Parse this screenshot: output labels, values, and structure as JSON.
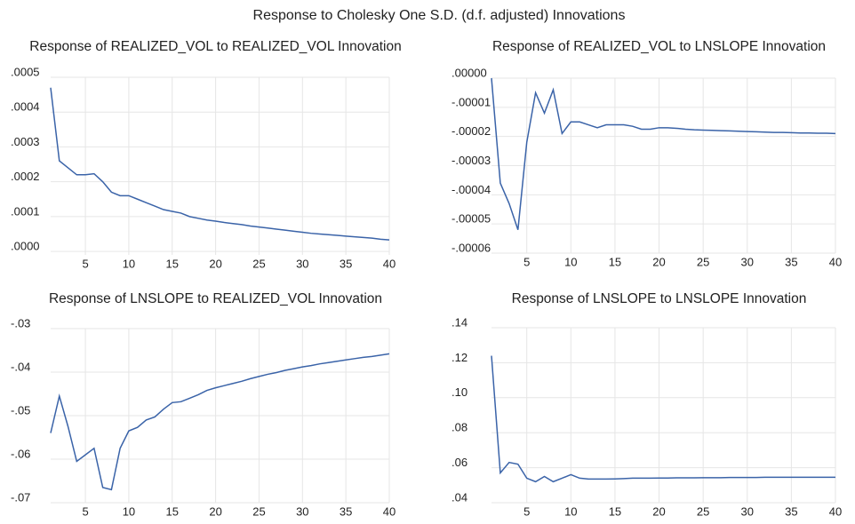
{
  "title": "Response to Cholesky One S.D. (d.f. adjusted) Innovations",
  "chart_data": [
    {
      "type": "line",
      "title": "Response of REALIZED_VOL to REALIZED_VOL Innovation",
      "color": "#3a63a8",
      "grid": true,
      "x": [
        1,
        2,
        3,
        4,
        5,
        6,
        7,
        8,
        9,
        10,
        11,
        12,
        13,
        14,
        15,
        16,
        17,
        18,
        19,
        20,
        21,
        22,
        23,
        24,
        25,
        26,
        27,
        28,
        29,
        30,
        31,
        32,
        33,
        34,
        35,
        36,
        37,
        38,
        39,
        40
      ],
      "values": [
        0.00047,
        0.00026,
        0.00024,
        0.00022,
        0.00022,
        0.000223,
        0.0002,
        0.00017,
        0.00016,
        0.00016,
        0.00015,
        0.00014,
        0.00013,
        0.00012,
        0.000115,
        0.00011,
        0.0001,
        9.5e-05,
        9e-05,
        8.7e-05,
        8.3e-05,
        8e-05,
        7.7e-05,
        7.3e-05,
        7e-05,
        6.7e-05,
        6.4e-05,
        6.1e-05,
        5.8e-05,
        5.5e-05,
        5.2e-05,
        5e-05,
        4.8e-05,
        4.6e-05,
        4.4e-05,
        4.2e-05,
        4e-05,
        3.8e-05,
        3.5e-05,
        3.3e-05
      ],
      "xlim": [
        1,
        40
      ],
      "xticks": [
        5,
        10,
        15,
        20,
        25,
        30,
        35,
        40
      ],
      "ylim": [
        -1e-05,
        0.0005
      ],
      "yticks": [
        {
          "value": 0,
          "label": ".0000"
        },
        {
          "value": 0.0001,
          "label": ".0001"
        },
        {
          "value": 0.0002,
          "label": ".0002"
        },
        {
          "value": 0.0003,
          "label": ".0003"
        },
        {
          "value": 0.0004,
          "label": ".0004"
        },
        {
          "value": 0.0005,
          "label": ".0005"
        }
      ]
    },
    {
      "type": "line",
      "title": "Response of REALIZED_VOL to LNSLOPE Innovation",
      "color": "#3a63a8",
      "grid": true,
      "x": [
        1,
        2,
        3,
        4,
        5,
        6,
        7,
        8,
        9,
        10,
        11,
        12,
        13,
        14,
        15,
        16,
        17,
        18,
        19,
        20,
        21,
        22,
        23,
        24,
        25,
        26,
        27,
        28,
        29,
        30,
        31,
        32,
        33,
        34,
        35,
        36,
        37,
        38,
        39,
        40
      ],
      "values": [
        0,
        -3.6e-05,
        -4.3e-05,
        -5.2e-05,
        -2.2e-05,
        -5e-06,
        -1.2e-05,
        -4e-06,
        -1.9e-05,
        -1.5e-05,
        -1.5e-05,
        -1.6e-05,
        -1.7e-05,
        -1.6e-05,
        -1.6e-05,
        -1.6e-05,
        -1.65e-05,
        -1.75e-05,
        -1.75e-05,
        -1.7e-05,
        -1.7e-05,
        -1.72e-05,
        -1.75e-05,
        -1.77e-05,
        -1.78e-05,
        -1.79e-05,
        -1.8e-05,
        -1.81e-05,
        -1.82e-05,
        -1.83e-05,
        -1.84e-05,
        -1.85e-05,
        -1.86e-05,
        -1.86e-05,
        -1.87e-05,
        -1.88e-05,
        -1.88e-05,
        -1.89e-05,
        -1.89e-05,
        -1.9e-05
      ],
      "xlim": [
        1,
        40
      ],
      "xticks": [
        5,
        10,
        15,
        20,
        25,
        30,
        35,
        40
      ],
      "ylim": [
        -6e-05,
        0
      ],
      "yticks": [
        {
          "value": -6e-05,
          "label": "-.00006"
        },
        {
          "value": -5e-05,
          "label": "-.00005"
        },
        {
          "value": -4e-05,
          "label": "-.00004"
        },
        {
          "value": -3e-05,
          "label": "-.00003"
        },
        {
          "value": -2e-05,
          "label": "-.00002"
        },
        {
          "value": -1e-05,
          "label": "-.00001"
        },
        {
          "value": 0,
          "label": ".00000"
        }
      ]
    },
    {
      "type": "line",
      "title": "Response of LNSLOPE to REALIZED_VOL Innovation",
      "color": "#3a63a8",
      "grid": true,
      "x": [
        1,
        2,
        3,
        4,
        5,
        6,
        7,
        8,
        9,
        10,
        11,
        12,
        13,
        14,
        15,
        16,
        17,
        18,
        19,
        20,
        21,
        22,
        23,
        24,
        25,
        26,
        27,
        28,
        29,
        30,
        31,
        32,
        33,
        34,
        35,
        36,
        37,
        38,
        39,
        40
      ],
      "values": [
        -0.054,
        -0.0455,
        -0.0525,
        -0.0605,
        -0.059,
        -0.0575,
        -0.0665,
        -0.067,
        -0.0575,
        -0.0535,
        -0.0527,
        -0.051,
        -0.0503,
        -0.0485,
        -0.047,
        -0.0468,
        -0.046,
        -0.0452,
        -0.0442,
        -0.0436,
        -0.0431,
        -0.0426,
        -0.0421,
        -0.0415,
        -0.041,
        -0.0405,
        -0.0401,
        -0.0396,
        -0.0392,
        -0.0388,
        -0.0385,
        -0.0381,
        -0.0378,
        -0.0375,
        -0.0372,
        -0.0369,
        -0.0366,
        -0.0364,
        -0.0361,
        -0.0358
      ],
      "xlim": [
        1,
        40
      ],
      "xticks": [
        5,
        10,
        15,
        20,
        25,
        30,
        35,
        40
      ],
      "ylim": [
        -0.07,
        -0.03
      ],
      "yticks": [
        {
          "value": -0.07,
          "label": "-.07"
        },
        {
          "value": -0.06,
          "label": "-.06"
        },
        {
          "value": -0.05,
          "label": "-.05"
        },
        {
          "value": -0.04,
          "label": "-.04"
        },
        {
          "value": -0.03,
          "label": "-.03"
        }
      ]
    },
    {
      "type": "line",
      "title": "Response of LNSLOPE to LNSLOPE Innovation",
      "color": "#3a63a8",
      "grid": true,
      "x": [
        1,
        2,
        3,
        4,
        5,
        6,
        7,
        8,
        9,
        10,
        11,
        12,
        13,
        14,
        15,
        16,
        17,
        18,
        19,
        20,
        21,
        22,
        23,
        24,
        25,
        26,
        27,
        28,
        29,
        30,
        31,
        32,
        33,
        34,
        35,
        36,
        37,
        38,
        39,
        40
      ],
      "values": [
        0.124,
        0.057,
        0.063,
        0.062,
        0.054,
        0.052,
        0.055,
        0.052,
        0.054,
        0.056,
        0.054,
        0.0535,
        0.0535,
        0.0535,
        0.0536,
        0.0538,
        0.054,
        0.054,
        0.054,
        0.0541,
        0.0541,
        0.0542,
        0.0542,
        0.0542,
        0.0543,
        0.0543,
        0.0543,
        0.0544,
        0.0544,
        0.0544,
        0.0544,
        0.0545,
        0.0545,
        0.0545,
        0.0545,
        0.0545,
        0.0545,
        0.0545,
        0.0545,
        0.0545
      ],
      "xlim": [
        1,
        40
      ],
      "xticks": [
        5,
        10,
        15,
        20,
        25,
        30,
        35,
        40
      ],
      "ylim": [
        0.04,
        0.14
      ],
      "yticks": [
        {
          "value": 0.04,
          "label": ".04"
        },
        {
          "value": 0.06,
          "label": ".06"
        },
        {
          "value": 0.08,
          "label": ".08"
        },
        {
          "value": 0.1,
          "label": ".10"
        },
        {
          "value": 0.12,
          "label": ".12"
        },
        {
          "value": 0.14,
          "label": ".14"
        }
      ]
    }
  ]
}
